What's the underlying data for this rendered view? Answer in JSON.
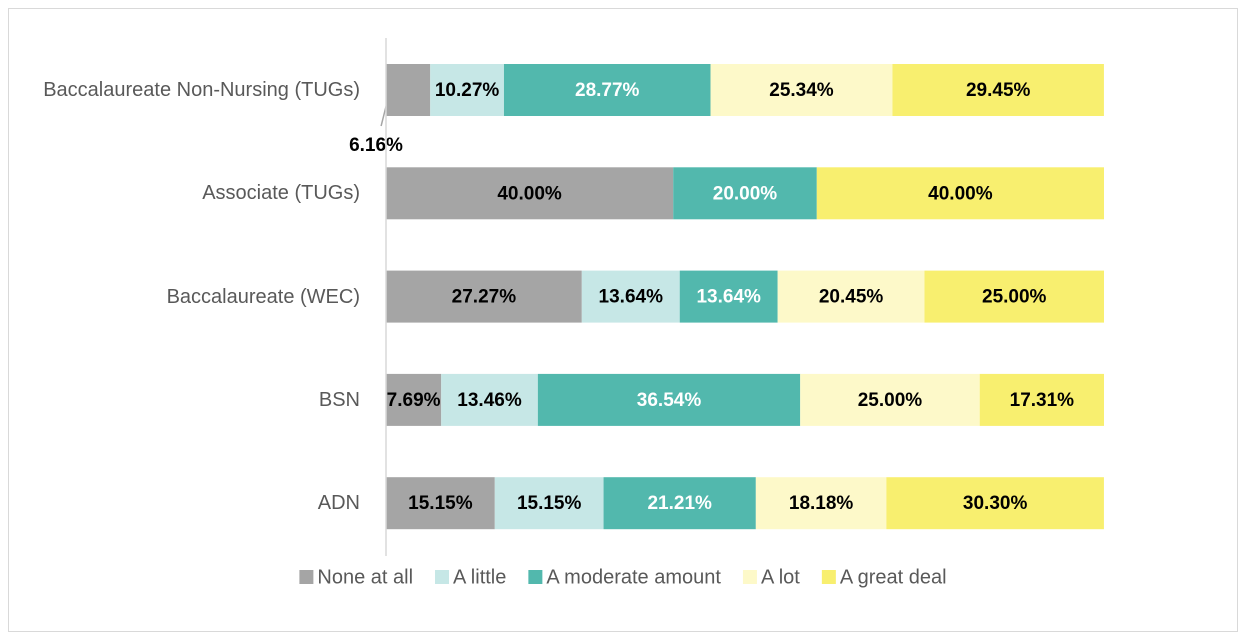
{
  "chart_data": {
    "type": "stacked-barh",
    "categories": [
      "Baccalaureate Non-Nursing (TUGs)",
      "Associate (TUGs)",
      "Baccalaureate (WEC)",
      "BSN",
      "ADN"
    ],
    "xlim": [
      0,
      100
    ],
    "legend": "bottom",
    "series": [
      {
        "name": "None at all",
        "color": "#a5a5a5",
        "values": [
          6.16,
          40.0,
          27.27,
          7.69,
          15.15
        ],
        "value_labels": [
          "6.16%",
          "40.00%",
          "27.27%",
          "7.69%",
          "15.15%"
        ]
      },
      {
        "name": "A little",
        "color": "#c6e7e6",
        "values": [
          10.27,
          null,
          13.64,
          13.46,
          15.15
        ],
        "value_labels": [
          "10.27%",
          null,
          "13.64%",
          "13.46%",
          "15.15%"
        ]
      },
      {
        "name": "A moderate amount",
        "color": "#52b8ad",
        "values": [
          28.77,
          20.0,
          13.64,
          36.54,
          21.21
        ],
        "value_labels": [
          "28.77%",
          "20.00%",
          "13.64%",
          "36.54%",
          "21.21%"
        ]
      },
      {
        "name": "A lot",
        "color": "#fdf9c9",
        "values": [
          25.34,
          null,
          20.45,
          25.0,
          18.18
        ],
        "value_labels": [
          "25.34%",
          null,
          "20.45%",
          "25.00%",
          "18.18%"
        ]
      },
      {
        "name": "A great deal",
        "color": "#f8ef6f",
        "values": [
          29.45,
          40.0,
          25.0,
          17.31,
          30.3
        ],
        "value_labels": [
          "29.45%",
          "40.00%",
          "25.00%",
          "17.31%",
          "30.30%"
        ]
      }
    ]
  }
}
